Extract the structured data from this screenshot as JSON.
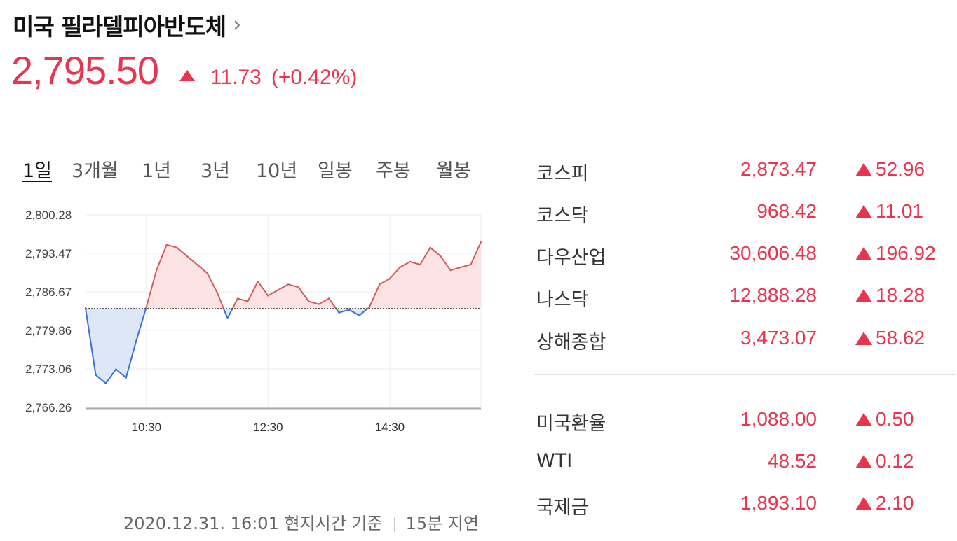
{
  "header": {
    "title": "미국 필라델피아반도체",
    "chevron": "›",
    "price": "2,795.50",
    "change": "11.73",
    "change_pct": "(+0.42%)",
    "direction": "up"
  },
  "tabs": [
    "1일",
    "3개월",
    "1년",
    "3년",
    "10년",
    "일봉",
    "주봉",
    "월봉"
  ],
  "active_tab": "1일",
  "footer": {
    "timestamp": "2020.12.31. 16:01 현지시간 기준",
    "delay": "15분 지연"
  },
  "markets": [
    {
      "name": "코스피",
      "value": "2,873.47",
      "change": "52.96"
    },
    {
      "name": "코스닥",
      "value": "968.42",
      "change": "11.01"
    },
    {
      "name": "다우산업",
      "value": "30,606.48",
      "change": "196.92"
    },
    {
      "name": "나스닥",
      "value": "12,888.28",
      "change": "18.28"
    },
    {
      "name": "상해종합",
      "value": "3,473.07",
      "change": "58.62"
    }
  ],
  "fx": [
    {
      "name": "미국환율",
      "value": "1,088.00",
      "change": "0.50"
    },
    {
      "name": "WTI",
      "value": "48.52",
      "change": "0.12"
    },
    {
      "name": "국제금",
      "value": "1,893.10",
      "change": "2.10"
    }
  ],
  "colors": {
    "up": "#e8344e",
    "line_up": "#d65a5a",
    "line_down": "#3b6fd8",
    "fill_up": "#fde3e3",
    "fill_down": "#dce8f8"
  },
  "chart_data": {
    "type": "area",
    "title": "",
    "xlabel": "",
    "ylabel": "",
    "ylim": [
      2766.26,
      2800.28
    ],
    "y_ticks": [
      "2,800.28",
      "2,793.47",
      "2,786.67",
      "2,779.86",
      "2,773.06",
      "2,766.26"
    ],
    "x_ticks": [
      "10:30",
      "12:30",
      "14:30"
    ],
    "baseline": 2783.77,
    "series": [
      {
        "x": [
          "09:30",
          "09:40",
          "09:50",
          "10:00",
          "10:10",
          "10:20",
          "10:30",
          "10:40",
          "10:50",
          "11:00",
          "11:10",
          "11:20",
          "11:30",
          "11:40",
          "11:50",
          "12:00",
          "12:10",
          "12:20",
          "12:30",
          "12:40",
          "12:50",
          "13:00",
          "13:10",
          "13:20",
          "13:30",
          "13:40",
          "13:50",
          "14:00",
          "14:10",
          "14:20",
          "14:30",
          "14:40",
          "14:50",
          "15:00",
          "15:10",
          "15:20",
          "15:30",
          "15:40",
          "15:50",
          "16:00"
        ],
        "values": [
          2783.8,
          2772.0,
          2770.5,
          2773.0,
          2771.5,
          2778.0,
          2784.0,
          2790.5,
          2795.0,
          2794.5,
          2793.0,
          2791.5,
          2790.0,
          2786.5,
          2782.0,
          2785.5,
          2785.0,
          2788.5,
          2786.0,
          2787.0,
          2788.0,
          2787.5,
          2785.0,
          2784.5,
          2785.5,
          2783.0,
          2783.5,
          2782.5,
          2784.0,
          2788.0,
          2789.0,
          2791.0,
          2792.0,
          2791.5,
          2794.5,
          2793.0,
          2790.5,
          2791.0,
          2791.5,
          2795.5
        ]
      }
    ]
  }
}
